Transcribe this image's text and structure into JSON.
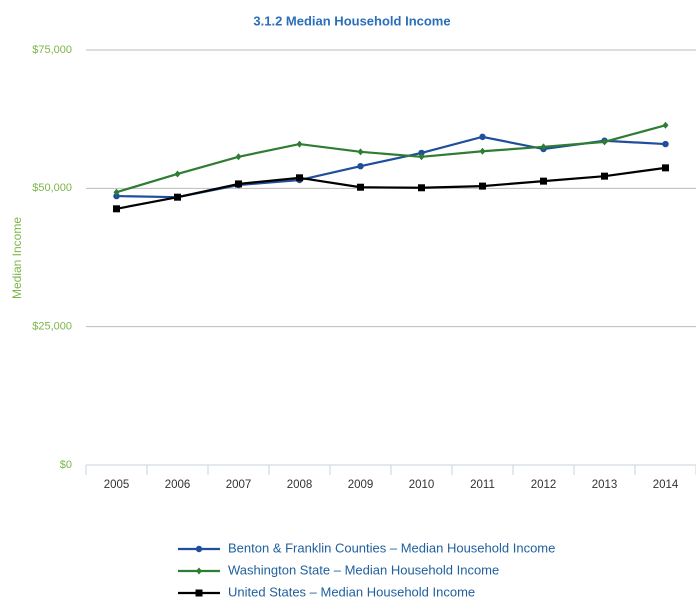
{
  "chart_data": {
    "type": "line",
    "title": "3.1.2 Median Household Income",
    "y_label": "Median Income",
    "categories": [
      "2005",
      "2006",
      "2007",
      "2008",
      "2009",
      "2010",
      "2011",
      "2012",
      "2013",
      "2014"
    ],
    "series": [
      {
        "name": "Benton & Franklin Counties – Median Household Income",
        "color": "#1f4e9c",
        "marker": "circle",
        "values": [
          48600,
          48400,
          50600,
          51500,
          54000,
          56400,
          59300,
          57100,
          58600,
          58000
        ]
      },
      {
        "name": "Washington State – Median Household Income",
        "color": "#2e7d32",
        "marker": "diamond",
        "values": [
          49300,
          52600,
          55700,
          58000,
          56600,
          55700,
          56700,
          57500,
          58400,
          61400
        ]
      },
      {
        "name": "United States – Median Household Income",
        "color": "#000000",
        "marker": "square",
        "values": [
          46300,
          48400,
          50800,
          51900,
          50200,
          50100,
          50400,
          51300,
          52200,
          53700
        ]
      }
    ],
    "ylim": [
      0,
      75000
    ],
    "yticks": [
      {
        "value": 0,
        "label": "$0"
      },
      {
        "value": 25000,
        "label": "$25,000"
      },
      {
        "value": 50000,
        "label": "$50,000"
      },
      {
        "value": 75000,
        "label": "$75,000"
      }
    ],
    "grid": true,
    "legend": "bottom"
  }
}
